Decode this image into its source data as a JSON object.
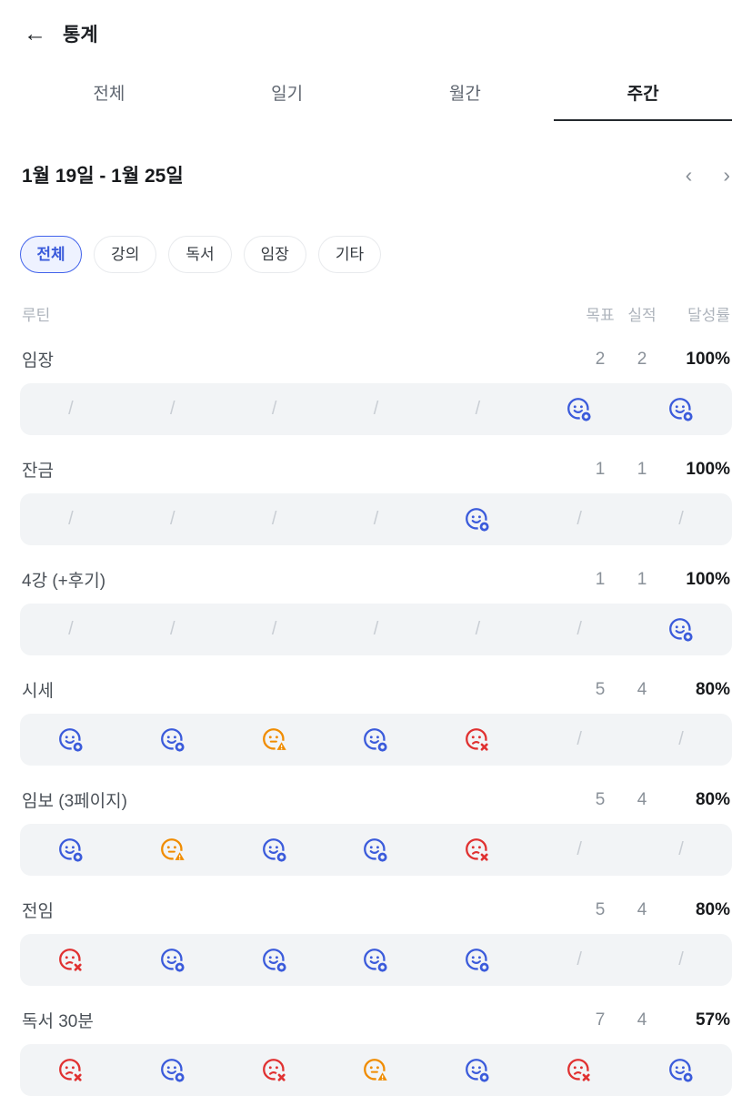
{
  "header": {
    "title": "통계",
    "back_glyph": "←"
  },
  "tabs": [
    {
      "label": "전체",
      "active": false
    },
    {
      "label": "일기",
      "active": false
    },
    {
      "label": "월간",
      "active": false
    },
    {
      "label": "주간",
      "active": true
    }
  ],
  "week_nav": {
    "range": "1월 19일 - 1월 25일",
    "prev_glyph": "‹",
    "next_glyph": "›"
  },
  "filters": [
    {
      "label": "전체",
      "selected": true
    },
    {
      "label": "강의",
      "selected": false
    },
    {
      "label": "독서",
      "selected": false
    },
    {
      "label": "임장",
      "selected": false
    },
    {
      "label": "기타",
      "selected": false
    }
  ],
  "table": {
    "columns": {
      "routine": "루틴",
      "goal": "목표",
      "actual": "실적",
      "rate": "달성률"
    },
    "none_glyph": "/",
    "rows": [
      {
        "name": "임장",
        "goal": "2",
        "actual": "2",
        "rate": "100%",
        "days": [
          "none",
          "none",
          "none",
          "none",
          "none",
          "success",
          "success"
        ]
      },
      {
        "name": "잔금",
        "goal": "1",
        "actual": "1",
        "rate": "100%",
        "days": [
          "none",
          "none",
          "none",
          "none",
          "success",
          "none",
          "none"
        ]
      },
      {
        "name": "4강 (+후기)",
        "goal": "1",
        "actual": "1",
        "rate": "100%",
        "days": [
          "none",
          "none",
          "none",
          "none",
          "none",
          "none",
          "success"
        ]
      },
      {
        "name": "시세",
        "goal": "5",
        "actual": "4",
        "rate": "80%",
        "days": [
          "success",
          "success",
          "warning",
          "success",
          "fail",
          "none",
          "none"
        ]
      },
      {
        "name": "임보 (3페이지)",
        "goal": "5",
        "actual": "4",
        "rate": "80%",
        "days": [
          "success",
          "warning",
          "success",
          "success",
          "fail",
          "none",
          "none"
        ]
      },
      {
        "name": "전임",
        "goal": "5",
        "actual": "4",
        "rate": "80%",
        "days": [
          "fail",
          "success",
          "success",
          "success",
          "success",
          "none",
          "none"
        ]
      },
      {
        "name": "독서 30분",
        "goal": "7",
        "actual": "4",
        "rate": "57%",
        "days": [
          "fail",
          "success",
          "fail",
          "warning",
          "success",
          "fail",
          "success"
        ]
      }
    ]
  },
  "colors": {
    "accent": "#3b5bdb",
    "success": "#3b5bdb",
    "warning": "#f08c00",
    "fail": "#e03131",
    "strip_bg": "#f2f4f6"
  }
}
